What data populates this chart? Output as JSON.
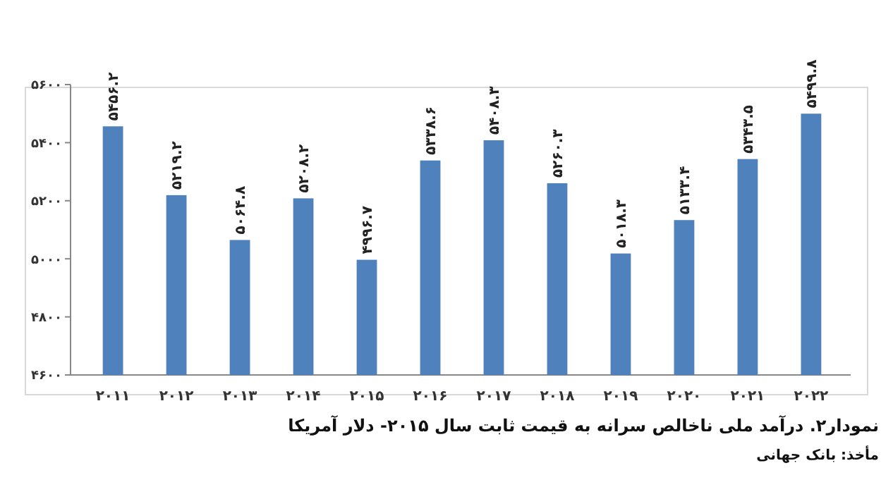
{
  "chart_data": {
    "type": "bar",
    "title": "نمودار۲. درآمد ملی ناخالص سرانه به قیمت ثابت سال ۲۰۱۵- دلار آمریکا",
    "annotations": [
      "مأخذ: بانک جهانی"
    ],
    "categories": [
      "۲۰۱۱",
      "۲۰۱۲",
      "۲۰۱۳",
      "۲۰۱۴",
      "۲۰۱۵",
      "۲۰۱۶",
      "۲۰۱۷",
      "۲۰۱۸",
      "۲۰۱۹",
      "۲۰۲۰",
      "۲۰۲۱",
      "۲۰۲۲"
    ],
    "values": [
      5456.2,
      5219.2,
      5064.8,
      5208.2,
      4996.7,
      5338.6,
      5408.3,
      5260.3,
      5018.3,
      5133.4,
      5343.5,
      5499.8
    ],
    "value_labels": [
      "۵۴۵۶.۲",
      "۵۲۱۹.۲",
      "۵۰۶۴.۸",
      "۵۲۰۸.۲",
      "۴۹۹۶.۷",
      "۵۳۳۸.۶",
      "۵۴۰۸.۳",
      "۵۲۶۰.۳",
      "۵۰۱۸.۳",
      "۵۱۳۳.۴",
      "۵۳۴۳.۵",
      "۵۴۹۹.۸"
    ],
    "color": "#4f81bd",
    "ylim": [
      4600,
      5600
    ],
    "yticks": [
      {
        "value": 4600,
        "label": "۴۶۰۰"
      },
      {
        "value": 4800,
        "label": "۴۸۰۰"
      },
      {
        "value": 5000,
        "label": "۵۰۰۰"
      },
      {
        "value": 5200,
        "label": "۵۲۰۰"
      },
      {
        "value": 5400,
        "label": "۵۴۰۰"
      },
      {
        "value": 5600,
        "label": "۵۶۰۰"
      }
    ],
    "grid": false
  }
}
